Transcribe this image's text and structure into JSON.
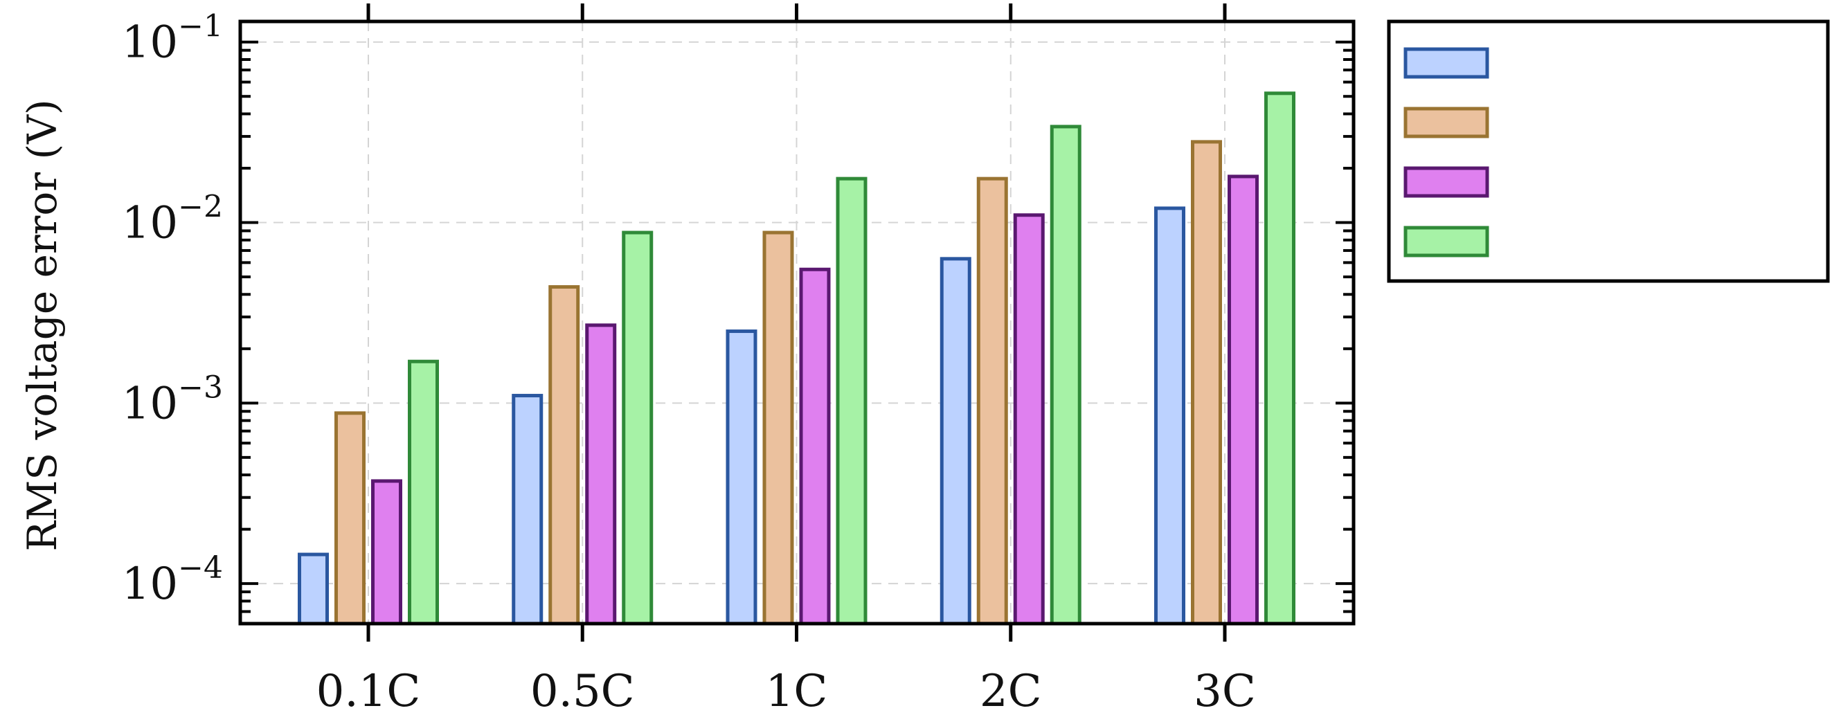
{
  "chart_data": {
    "type": "bar",
    "title": "",
    "xlabel": "",
    "ylabel": "RMS voltage error (V)",
    "y_scale": "log",
    "ylim": [
      6e-05,
      0.13
    ],
    "grid": true,
    "legend_position": "right-outside",
    "categories": [
      "0.1C",
      "0.5C",
      "1C",
      "2C",
      "3C"
    ],
    "yticks": [
      {
        "value": 0.0001,
        "base": "10",
        "exp": "−4"
      },
      {
        "value": 0.001,
        "base": "10",
        "exp": "−3"
      },
      {
        "value": 0.01,
        "base": "10",
        "exp": "−2"
      },
      {
        "value": 0.1,
        "base": "10",
        "exp": "−1"
      }
    ],
    "series": [
      {
        "name": "",
        "fill": "#bcd2ff",
        "stroke": "#2a57a0",
        "values": [
          0.000145,
          0.0011,
          0.0025,
          0.0063,
          0.012
        ]
      },
      {
        "name": "",
        "fill": "#ebc19e",
        "stroke": "#9a7432",
        "values": [
          0.00088,
          0.0044,
          0.0088,
          0.0175,
          0.028
        ]
      },
      {
        "name": "",
        "fill": "#df80ef",
        "stroke": "#5a1870",
        "values": [
          0.00037,
          0.0027,
          0.0055,
          0.011,
          0.018
        ]
      },
      {
        "name": "",
        "fill": "#a6f2a6",
        "stroke": "#2f8a38",
        "values": [
          0.0017,
          0.0088,
          0.0175,
          0.034,
          0.052
        ]
      }
    ]
  }
}
